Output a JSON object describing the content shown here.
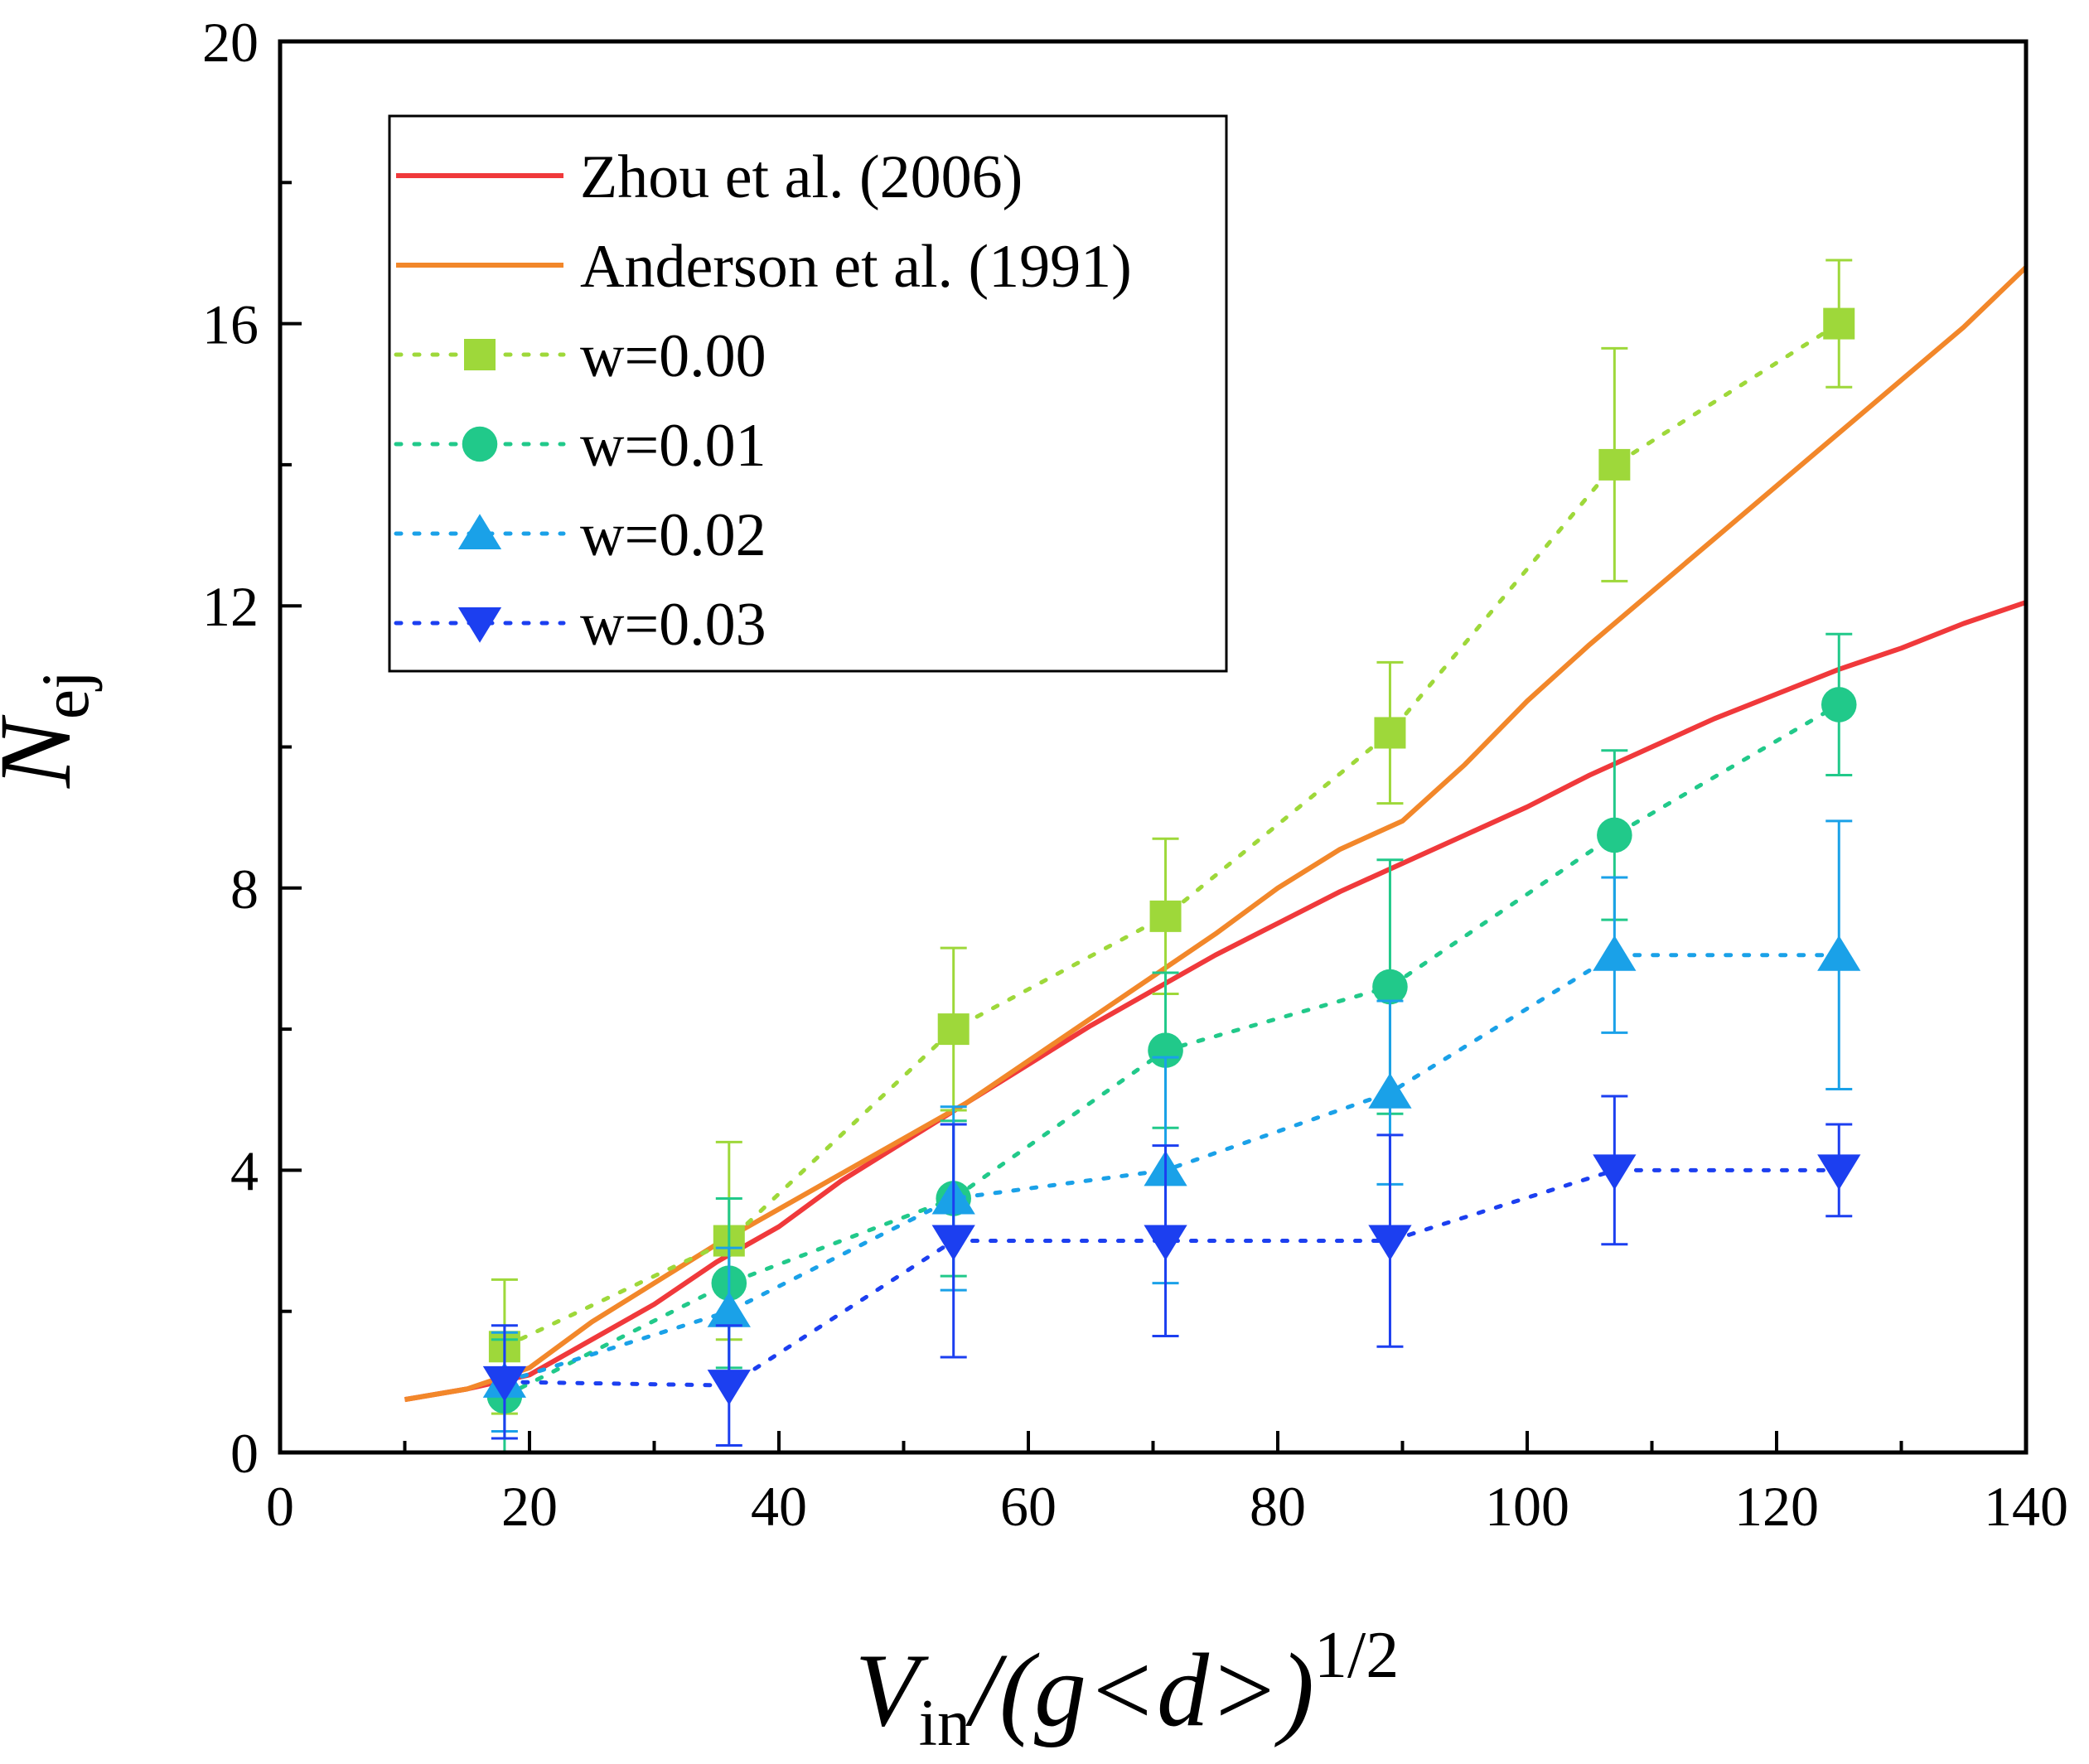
{
  "chart_data": {
    "type": "line",
    "title": "",
    "xlabel": {
      "main": "V",
      "sub": "in",
      "rest": "/(g<d>)",
      "sup": "1/2"
    },
    "ylabel": {
      "main": "N",
      "sub": "ej"
    },
    "xlim": [
      0,
      140
    ],
    "ylim": [
      0,
      20
    ],
    "xticks": [
      "0",
      "20",
      "40",
      "60",
      "80",
      "100",
      "120",
      "140"
    ],
    "yticks": [
      "0",
      "4",
      "8",
      "12",
      "16",
      "20"
    ],
    "legend_position": "top-left",
    "curves": [
      {
        "name": "Zhou et al. (2006)",
        "color": "#f0393b",
        "x": [
          10,
          15,
          20,
          25,
          30,
          35,
          40,
          45,
          50,
          55,
          60,
          65,
          70,
          75,
          80,
          85,
          90,
          95,
          100,
          105,
          110,
          115,
          120,
          125,
          130,
          135,
          140
        ],
        "y": [
          0.75,
          0.9,
          1.1,
          1.6,
          2.1,
          2.7,
          3.2,
          3.85,
          4.4,
          4.95,
          5.5,
          6.05,
          6.55,
          7.05,
          7.5,
          7.95,
          8.35,
          8.75,
          9.15,
          9.6,
          10.0,
          10.4,
          10.75,
          11.1,
          11.4,
          11.75,
          12.05
        ]
      },
      {
        "name": "Anderson et al. (1991)",
        "color": "#f2872a",
        "x": [
          10,
          15,
          20,
          25,
          30,
          35,
          40,
          45,
          50,
          55,
          60,
          65,
          70,
          75,
          80,
          85,
          90,
          95,
          100,
          105,
          110,
          115,
          120,
          125,
          130,
          135,
          140
        ],
        "y": [
          0.75,
          0.9,
          1.2,
          1.85,
          2.4,
          2.95,
          3.45,
          3.95,
          4.45,
          4.95,
          5.55,
          6.15,
          6.75,
          7.35,
          8.0,
          8.55,
          8.95,
          9.75,
          10.65,
          11.45,
          12.2,
          12.95,
          13.7,
          14.45,
          15.2,
          15.95,
          16.8
        ]
      }
    ],
    "series": [
      {
        "name": "w=0.00",
        "marker": "square",
        "color": "#9ed83a",
        "x": [
          18,
          36,
          54,
          71,
          89,
          107,
          125
        ],
        "y": [
          1.5,
          3.0,
          6.0,
          7.6,
          10.2,
          14.0,
          16.0
        ],
        "err": [
          0.95,
          1.4,
          1.15,
          1.1,
          1.0,
          1.65,
          0.9
        ]
      },
      {
        "name": "w=0.01",
        "marker": "circle",
        "color": "#21c98a",
        "x": [
          18,
          36,
          54,
          71,
          89,
          107,
          125
        ],
        "y": [
          0.8,
          2.4,
          3.6,
          5.7,
          6.6,
          8.75,
          10.6
        ],
        "err": [
          0.8,
          1.2,
          1.1,
          1.1,
          1.8,
          1.2,
          1.0
        ]
      },
      {
        "name": "w=0.02",
        "marker": "triangle-up",
        "color": "#1aa1e8",
        "x": [
          18,
          36,
          54,
          71,
          89,
          107,
          125
        ],
        "y": [
          1.0,
          2.0,
          3.6,
          4.0,
          5.1,
          7.05,
          7.05
        ],
        "err": [
          0.7,
          0.9,
          1.3,
          1.6,
          1.3,
          1.1,
          1.9
        ]
      },
      {
        "name": "w=0.03",
        "marker": "triangle-down",
        "color": "#1c3ff0",
        "x": [
          18,
          36,
          54,
          71,
          89,
          107,
          125
        ],
        "y": [
          1.0,
          0.95,
          3.0,
          3.0,
          3.0,
          4.0,
          4.0
        ],
        "err": [
          0.8,
          0.85,
          1.65,
          1.35,
          1.5,
          1.05,
          0.65
        ]
      }
    ]
  }
}
